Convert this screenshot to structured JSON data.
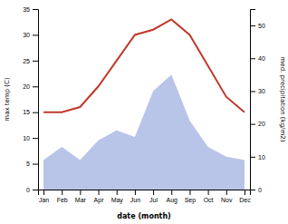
{
  "chart_data": {
    "type": "line",
    "categories": [
      "Jan",
      "Feb",
      "Mar",
      "Apr",
      "May",
      "Jun",
      "Jul",
      "Aug",
      "Sep",
      "Oct",
      "Nov",
      "Dec"
    ],
    "xlabel": "date (month)",
    "ylabel": "max temp (C)",
    "y2label": "med. precipitation (kg/m2)",
    "ylim": [
      0,
      35
    ],
    "yticks": [
      0,
      5,
      10,
      15,
      20,
      25,
      30,
      35
    ],
    "y2lim": [
      0,
      55
    ],
    "y2ticks": [
      0,
      10,
      20,
      30,
      40,
      50
    ],
    "series": [
      {
        "type": "area",
        "axis": "y2",
        "color": "#b8c4e8",
        "values": [
          9,
          13,
          9,
          15,
          18,
          16,
          30,
          35,
          21,
          13,
          10,
          9
        ]
      },
      {
        "type": "line",
        "color": "#c0392b",
        "values": [
          15,
          15,
          16,
          20,
          25,
          30,
          31,
          33,
          30,
          24,
          18,
          15
        ]
      }
    ]
  }
}
